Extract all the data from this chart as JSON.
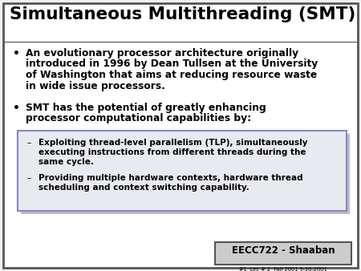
{
  "title": "Simultaneous Multithreading (SMT)",
  "slide_bg": "#f2f2f2",
  "border_color": "#555555",
  "title_fontsize": 15.5,
  "bullet1_line1": "An evolutionary processor architecture originally",
  "bullet1_line2": "introduced in 1996 by Dean Tullsen at the University",
  "bullet1_line3": "of Washington that aims at reducing resource waste",
  "bullet1_line4": "in wide issue processors.",
  "bullet2_line1": "SMT has the potential of greatly enhancing",
  "bullet2_line2": "processor computational capabilities by:",
  "sub1_line1": "Exploiting thread-level parallelism (TLP), simultaneously",
  "sub1_line2": "executing instructions from different threads during the",
  "sub1_line3": "same cycle.",
  "sub2_line1": "Providing multiple hardware contexts, hardware thread",
  "sub2_line2": "scheduling and context switching capability.",
  "footer_main": "EECC722 - Shaaban",
  "footer_sub": "#1  Lec # 2  Fall 2001 9-10-2001",
  "text_color": "#000000",
  "box_fill": "#e8eaf0",
  "box_border": "#8888bb",
  "shadow_color": "#bbbbcc",
  "footer_bg": "#cccccc",
  "white": "#ffffff"
}
